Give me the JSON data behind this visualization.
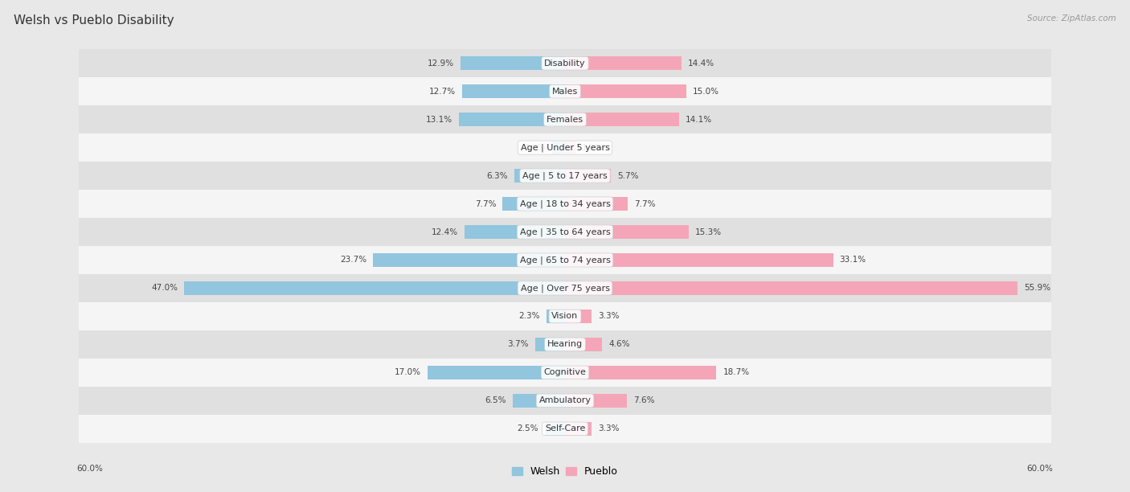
{
  "title": "Welsh vs Pueblo Disability",
  "source": "Source: ZipAtlas.com",
  "categories": [
    "Disability",
    "Males",
    "Females",
    "Age | Under 5 years",
    "Age | 5 to 17 years",
    "Age | 18 to 34 years",
    "Age | 35 to 64 years",
    "Age | 65 to 74 years",
    "Age | Over 75 years",
    "Vision",
    "Hearing",
    "Cognitive",
    "Ambulatory",
    "Self-Care"
  ],
  "welsh_values": [
    12.9,
    12.7,
    13.1,
    1.6,
    6.3,
    7.7,
    12.4,
    23.7,
    47.0,
    2.3,
    3.7,
    17.0,
    6.5,
    2.5
  ],
  "pueblo_values": [
    14.4,
    15.0,
    14.1,
    1.3,
    5.7,
    7.7,
    15.3,
    33.1,
    55.9,
    3.3,
    4.6,
    18.7,
    7.6,
    3.3
  ],
  "welsh_color": "#92c5de",
  "pueblo_color": "#f4a6b8",
  "welsh_label": "Welsh",
  "pueblo_label": "Pueblo",
  "axis_max": 60.0,
  "bg_color": "#e8e8e8",
  "row_bg_odd": "#f5f5f5",
  "row_bg_even": "#e0e0e0",
  "title_fontsize": 11,
  "label_fontsize": 8,
  "value_fontsize": 7.5,
  "legend_fontsize": 9
}
